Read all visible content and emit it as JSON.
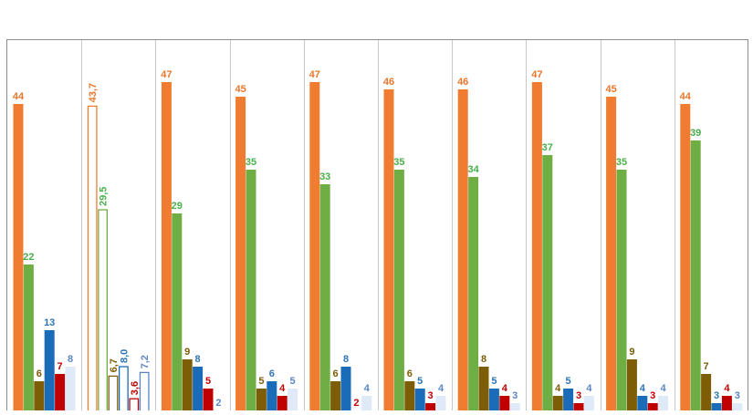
{
  "chart_data": {
    "type": "bar",
    "title": "",
    "xlabel": "",
    "ylabel": "",
    "ylim": [
      0,
      50
    ],
    "grid": false,
    "legend": "none",
    "colors": {
      "orange": "#ef7c30",
      "green": "#6fae45",
      "brown": "#7d5d06",
      "blue": "#1a6cb8",
      "red": "#c00000",
      "lightblue": "#dfe9f7",
      "label_orange": "#e9762b",
      "label_green": "#48b04a",
      "label_brown": "#7d5d06",
      "label_blue": "#2e74b5",
      "label_red": "#c00000",
      "label_lightblue": "#5b86c5",
      "frame": "#8c8c8c",
      "divider": "#c8c8c8"
    },
    "groups": [
      {
        "bars": [
          {
            "value": 44,
            "label": "44",
            "color": "orange"
          },
          {
            "value": 22,
            "label": "22",
            "color": "green"
          },
          {
            "value": 6,
            "label": "6",
            "color": "brown"
          },
          {
            "value": 13,
            "label": "13",
            "color": "blue"
          },
          {
            "value": 7,
            "label": "7",
            "color": "red"
          },
          {
            "value": 8,
            "label": "8",
            "color": "lightblue"
          }
        ]
      },
      {
        "outline": true,
        "bars": [
          {
            "value": 43.7,
            "label": "43,7",
            "color": "orange"
          },
          {
            "value": 29.5,
            "label": "29,5",
            "color": "green"
          },
          {
            "value": 6.7,
            "label": "6,7",
            "color": "brown"
          },
          {
            "value": 8.0,
            "label": "8,0",
            "color": "blue"
          },
          {
            "value": 3.6,
            "label": "3,6",
            "color": "red"
          },
          {
            "value": 7.2,
            "label": "7,2",
            "color": "lightblue"
          }
        ]
      },
      {
        "bars": [
          {
            "value": 47,
            "label": "47",
            "color": "orange"
          },
          {
            "value": 29,
            "label": "29",
            "color": "green"
          },
          {
            "value": 9,
            "label": "9",
            "color": "brown"
          },
          {
            "value": 8,
            "label": "8",
            "color": "blue"
          },
          {
            "value": 5,
            "label": "5",
            "color": "red"
          },
          {
            "value": 2,
            "label": "2",
            "color": "lightblue"
          }
        ]
      },
      {
        "bars": [
          {
            "value": 45,
            "label": "45",
            "color": "orange"
          },
          {
            "value": 35,
            "label": "35",
            "color": "green"
          },
          {
            "value": 5,
            "label": "5",
            "color": "brown"
          },
          {
            "value": 6,
            "label": "6",
            "color": "blue"
          },
          {
            "value": 4,
            "label": "4",
            "color": "red"
          },
          {
            "value": 5,
            "label": "5",
            "color": "lightblue"
          }
        ]
      },
      {
        "bars": [
          {
            "value": 47,
            "label": "47",
            "color": "orange"
          },
          {
            "value": 33,
            "label": "33",
            "color": "green"
          },
          {
            "value": 6,
            "label": "6",
            "color": "brown"
          },
          {
            "value": 8,
            "label": "8",
            "color": "blue"
          },
          {
            "value": 2,
            "label": "2",
            "color": "red"
          },
          {
            "value": 4,
            "label": "4",
            "color": "lightblue"
          }
        ]
      },
      {
        "bars": [
          {
            "value": 46,
            "label": "46",
            "color": "orange"
          },
          {
            "value": 35,
            "label": "35",
            "color": "green"
          },
          {
            "value": 6,
            "label": "6",
            "color": "brown"
          },
          {
            "value": 5,
            "label": "5",
            "color": "blue"
          },
          {
            "value": 3,
            "label": "3",
            "color": "red"
          },
          {
            "value": 4,
            "label": "4",
            "color": "lightblue"
          }
        ]
      },
      {
        "bars": [
          {
            "value": 46,
            "label": "46",
            "color": "orange"
          },
          {
            "value": 34,
            "label": "34",
            "color": "green"
          },
          {
            "value": 8,
            "label": "8",
            "color": "brown"
          },
          {
            "value": 5,
            "label": "5",
            "color": "blue"
          },
          {
            "value": 4,
            "label": "4",
            "color": "red"
          },
          {
            "value": 3,
            "label": "3",
            "color": "lightblue"
          }
        ]
      },
      {
        "bars": [
          {
            "value": 47,
            "label": "47",
            "color": "orange"
          },
          {
            "value": 37,
            "label": "37",
            "color": "green"
          },
          {
            "value": 4,
            "label": "4",
            "color": "brown"
          },
          {
            "value": 5,
            "label": "5",
            "color": "blue"
          },
          {
            "value": 3,
            "label": "3",
            "color": "red"
          },
          {
            "value": 4,
            "label": "4",
            "color": "lightblue"
          }
        ]
      },
      {
        "bars": [
          {
            "value": 45,
            "label": "45",
            "color": "orange"
          },
          {
            "value": 35,
            "label": "35",
            "color": "green"
          },
          {
            "value": 9,
            "label": "9",
            "color": "brown"
          },
          {
            "value": 4,
            "label": "4",
            "color": "blue"
          },
          {
            "value": 3,
            "label": "3",
            "color": "red"
          },
          {
            "value": 4,
            "label": "4",
            "color": "lightblue"
          }
        ]
      },
      {
        "bars": [
          {
            "value": 44,
            "label": "44",
            "color": "orange"
          },
          {
            "value": 39,
            "label": "39",
            "color": "green"
          },
          {
            "value": 7,
            "label": "7",
            "color": "brown"
          },
          {
            "value": 3,
            "label": "3",
            "color": "blue"
          },
          {
            "value": 4,
            "label": "4",
            "color": "red"
          },
          {
            "value": 3,
            "label": "3",
            "color": "lightblue"
          }
        ]
      }
    ]
  }
}
